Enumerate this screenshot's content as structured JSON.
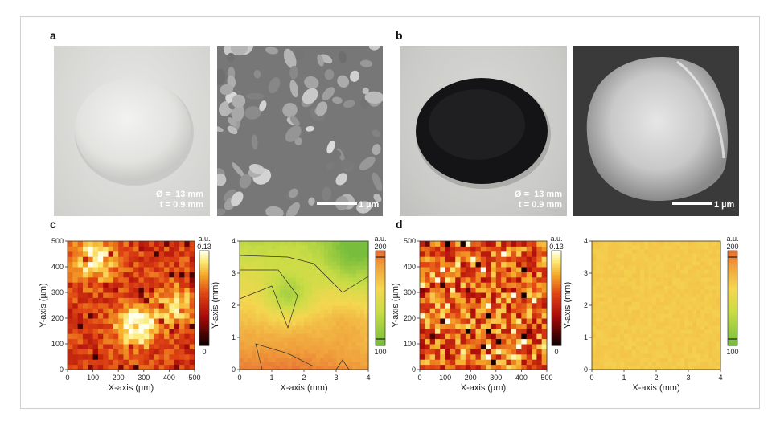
{
  "panels": {
    "a": {
      "label": "a",
      "diameter_text": "Ø =  13 mm",
      "thickness_text": "t = 0.9 mm",
      "scale_text": "1 µm"
    },
    "b": {
      "label": "b",
      "diameter_text": "Ø =  13 mm",
      "thickness_text": "t = 0.9 mm",
      "scale_text": "1 µm"
    },
    "c": {
      "label": "c"
    },
    "d": {
      "label": "d"
    }
  },
  "chart_data": [
    {
      "id": "c-left",
      "type": "heatmap",
      "xlabel": "X-axis (µm)",
      "ylabel": "Y-axis (µm)",
      "xlim": [
        0,
        500
      ],
      "ylim": [
        0,
        500
      ],
      "xticks": [
        "0",
        "100",
        "200",
        "300",
        "400",
        "500"
      ],
      "yticks": [
        "0",
        "100",
        "200",
        "300",
        "400",
        "500"
      ],
      "colorbar": {
        "unit": "a.u.",
        "max_label": "0.13",
        "min_label": "0",
        "max": 0.13,
        "min": 0
      },
      "hotspots": [
        {
          "x": 270,
          "y": 170,
          "level": 1.0
        },
        {
          "x": 110,
          "y": 430,
          "level": 0.85
        },
        {
          "x": 430,
          "y": 250,
          "level": 0.6
        }
      ]
    },
    {
      "id": "c-right",
      "type": "heatmap",
      "xlabel": "X-axis (mm)",
      "ylabel": "Y-axis (mm)",
      "xlim": [
        0,
        4
      ],
      "ylim": [
        0,
        4
      ],
      "xticks": [
        "0",
        "1",
        "2",
        "3",
        "4"
      ],
      "yticks": [
        "0",
        "1",
        "2",
        "3",
        "4"
      ],
      "colorbar": {
        "unit": "a.u.",
        "max_label": "200",
        "min_label": "100",
        "max": 200,
        "min": 100
      }
    },
    {
      "id": "d-left",
      "type": "heatmap",
      "xlabel": "X-axis (µm)",
      "ylabel": "Y-axis (µm)",
      "xlim": [
        0,
        500
      ],
      "ylim": [
        0,
        500
      ],
      "xticks": [
        "0",
        "100",
        "200",
        "300",
        "400",
        "500"
      ],
      "yticks": [
        "0",
        "100",
        "200",
        "300",
        "400",
        "500"
      ],
      "colorbar": {
        "unit": "a.u.",
        "max_label": "0.13",
        "min_label": "0",
        "max": 0.13,
        "min": 0
      }
    },
    {
      "id": "d-right",
      "type": "heatmap",
      "xlabel": "X-axis (mm)",
      "ylabel": "Y-axis (mm)",
      "xlim": [
        0,
        4
      ],
      "ylim": [
        0,
        4
      ],
      "xticks": [
        "0",
        "1",
        "2",
        "3",
        "4"
      ],
      "yticks": [
        "0",
        "1",
        "2",
        "3",
        "4"
      ],
      "colorbar": {
        "unit": "a.u.",
        "max_label": "200",
        "min_label": "100",
        "max": 200,
        "min": 100
      }
    }
  ]
}
